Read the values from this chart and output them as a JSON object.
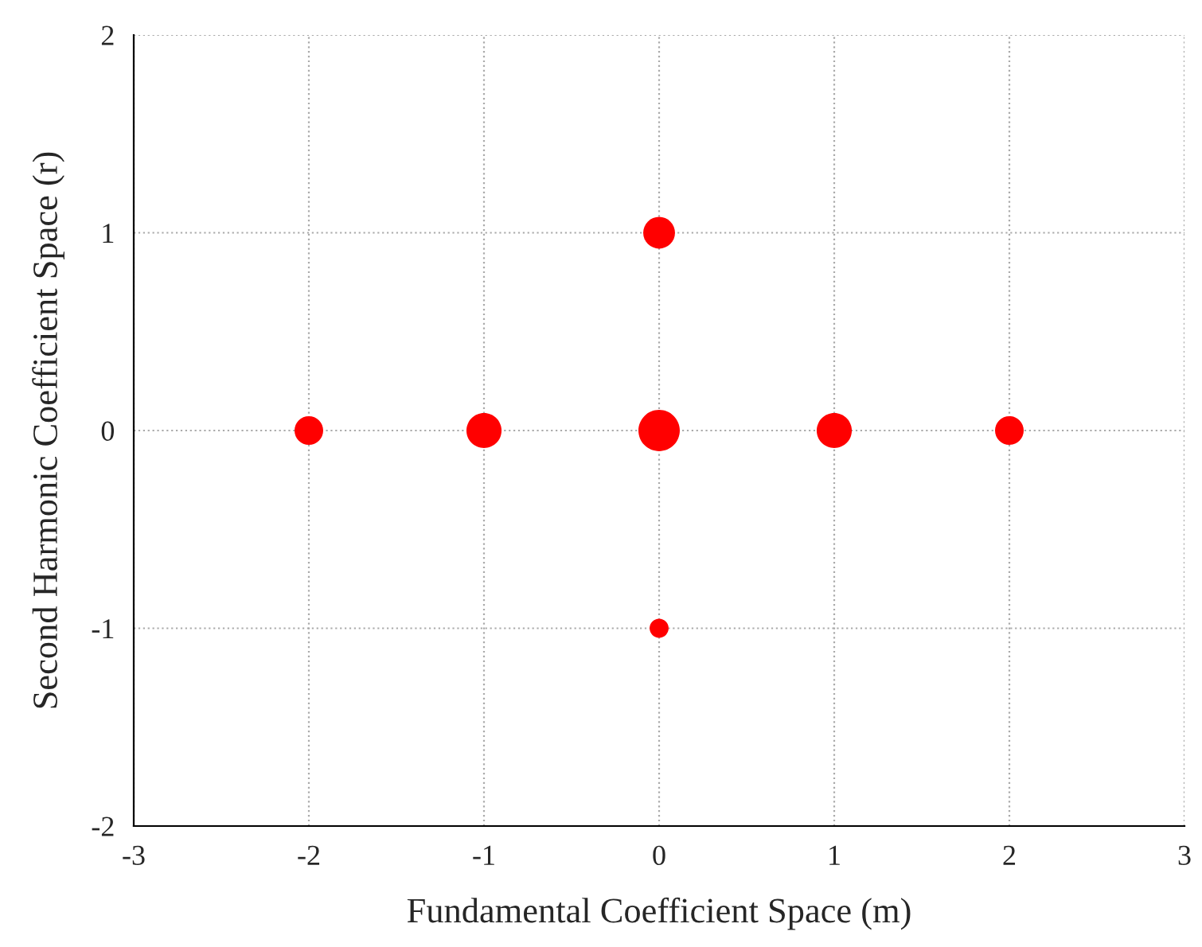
{
  "chart_data": {
    "type": "bubble",
    "xlabel": "Fundamental Coefficient Space (m)",
    "ylabel": "Second Harmonic Coefficient Space (r)",
    "x": [
      -2,
      -1,
      0,
      1,
      2,
      0,
      0
    ],
    "values": [
      0,
      0,
      0,
      0,
      0,
      1,
      -1
    ],
    "sizes": [
      0.48,
      0.72,
      1,
      0.72,
      0.48,
      0.59,
      0.21
    ],
    "color": "#ff0000",
    "xlim": [
      -3,
      3
    ],
    "ylim": [
      -2,
      2
    ],
    "xticks": [
      -3,
      -2,
      -1,
      0,
      1,
      2,
      3
    ],
    "yticks": [
      -2,
      -1,
      0,
      1,
      2
    ],
    "grid": true
  }
}
